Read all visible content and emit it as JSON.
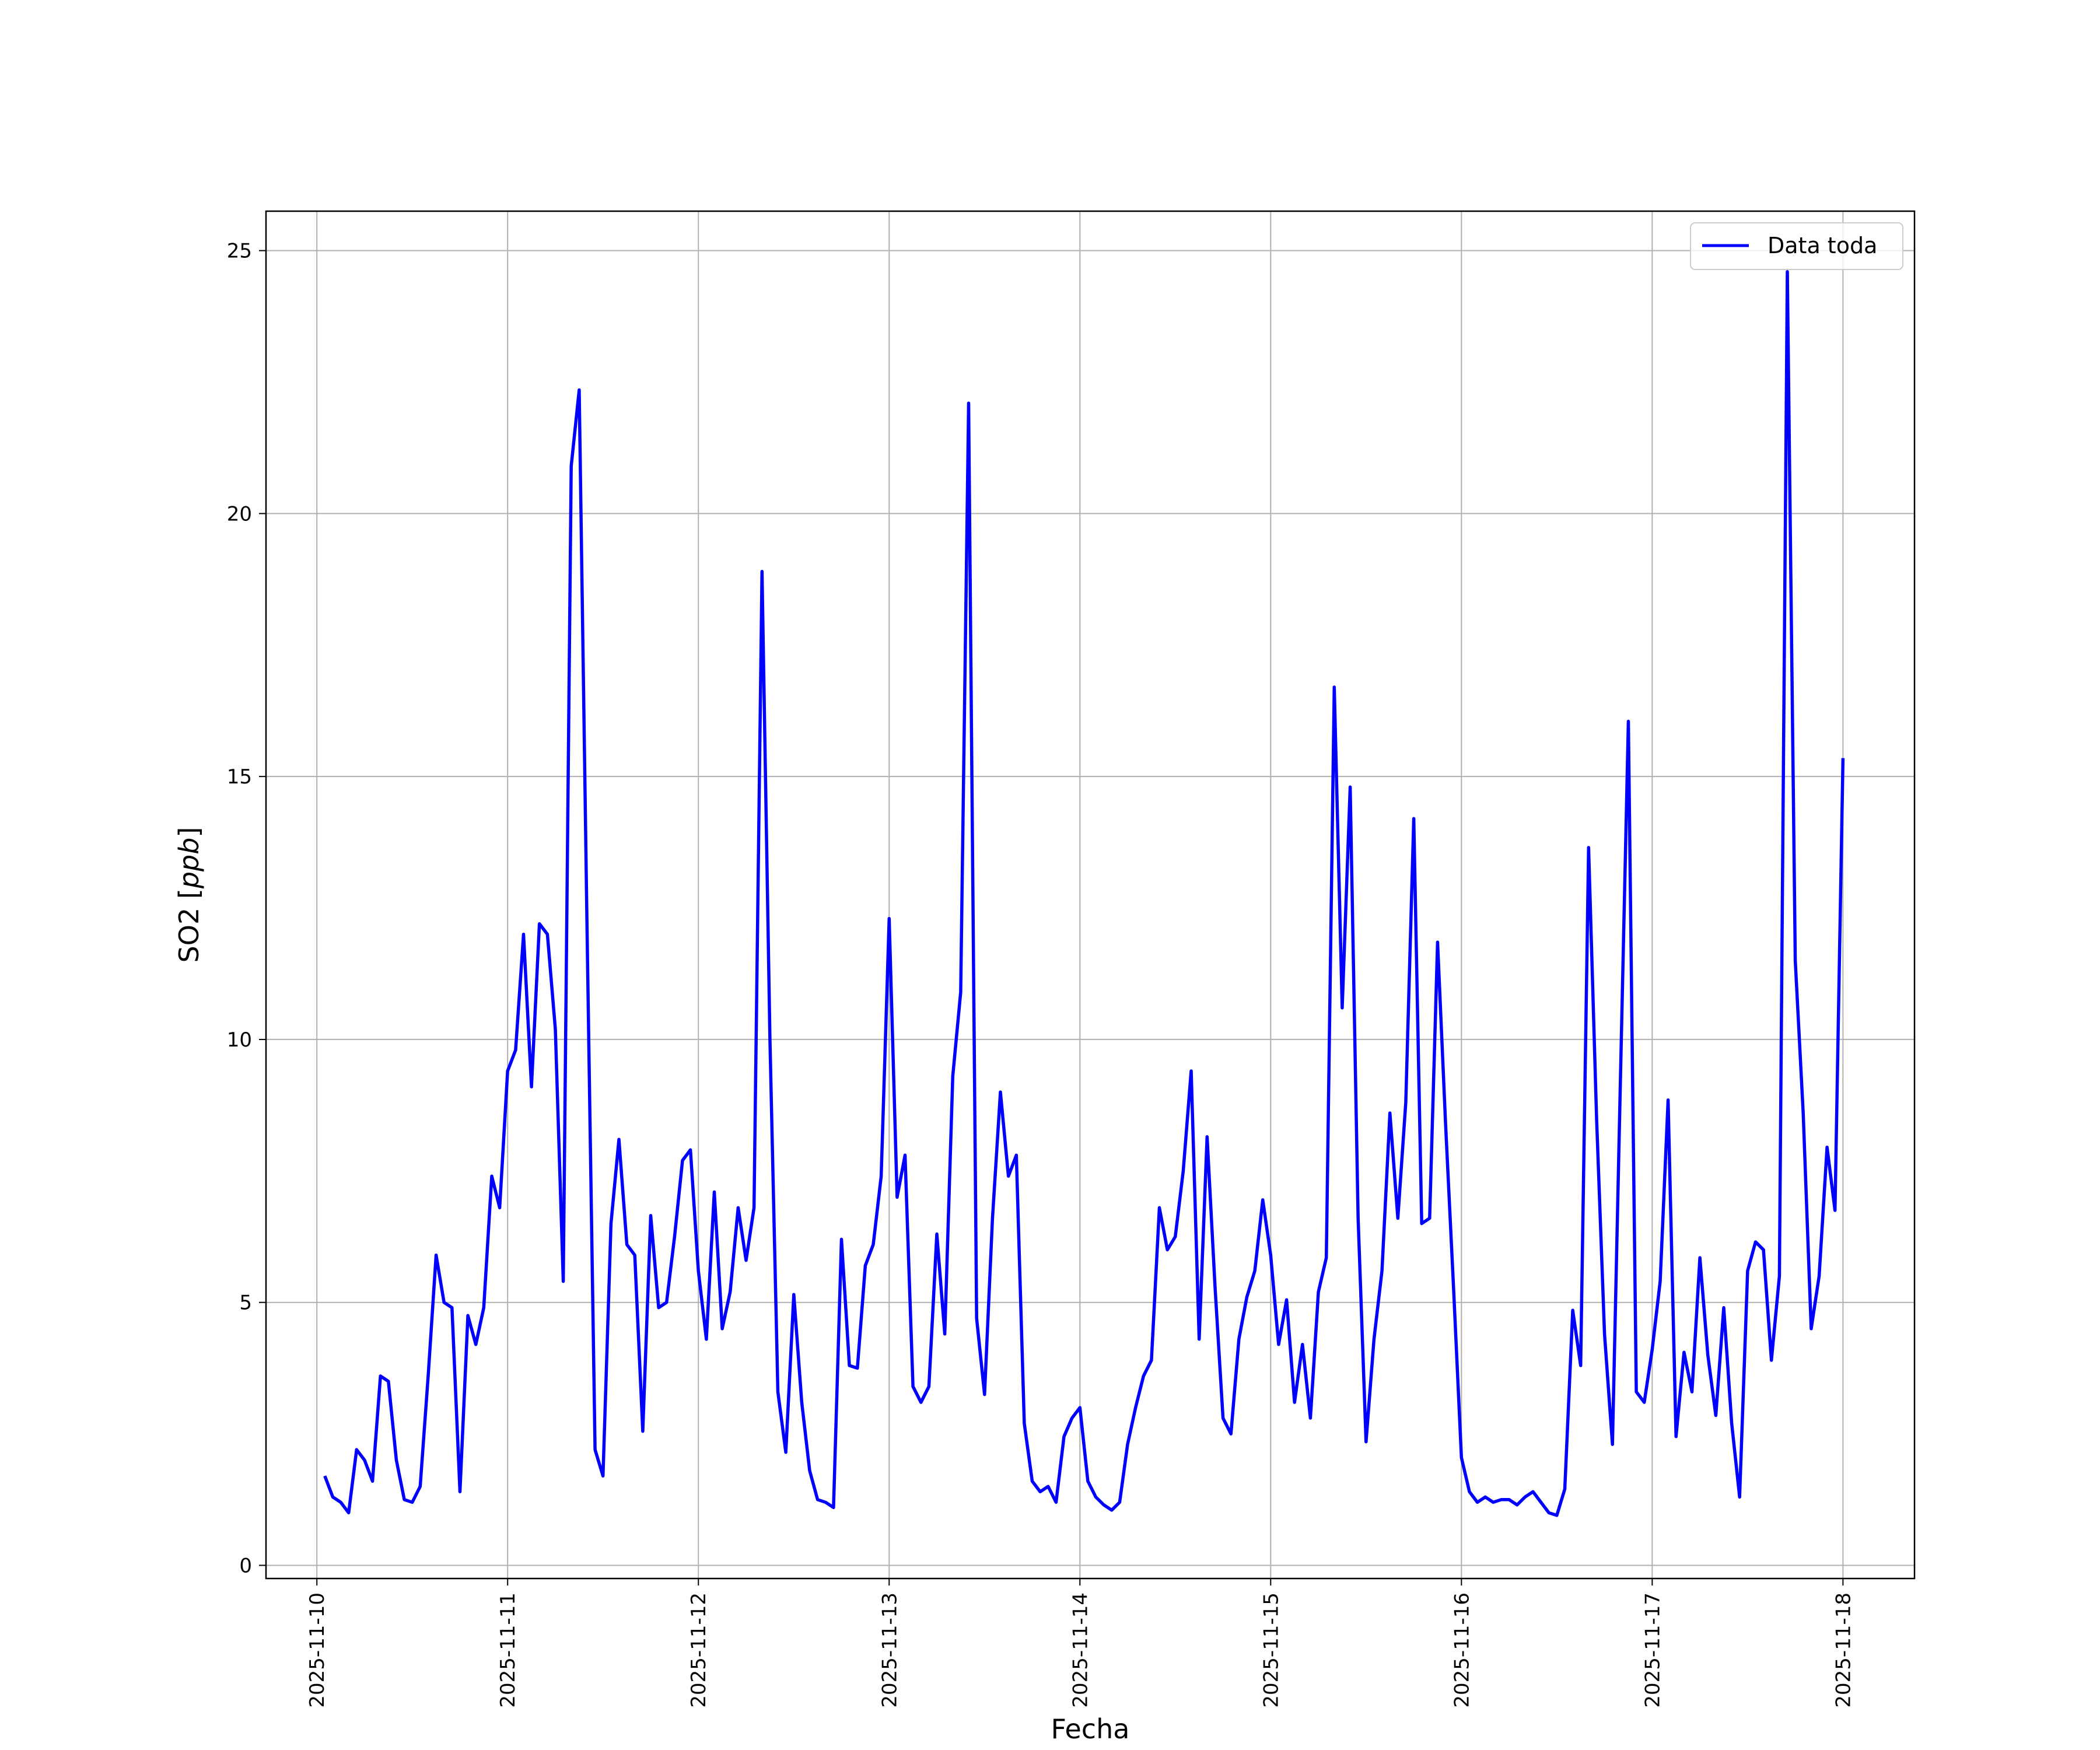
{
  "chart_data": {
    "type": "line",
    "xlabel": "Fecha",
    "ylabel": "SO2 [ppb]",
    "ylabel_prefix": "SO2 [",
    "ylabel_unit": "ppb",
    "ylabel_suffix": "]",
    "xlim": [
      "2025-11-09T17:36",
      "2025-11-18T09:00"
    ],
    "ylim": [
      -0.25,
      25.75
    ],
    "grid": true,
    "legend_position": "upper right",
    "x_ticks": [
      "2025-11-10",
      "2025-11-11",
      "2025-11-12",
      "2025-11-13",
      "2025-11-14",
      "2025-11-15",
      "2025-11-16",
      "2025-11-17",
      "2025-11-18"
    ],
    "y_ticks": [
      0,
      5,
      10,
      15,
      20,
      25
    ],
    "series": [
      {
        "name": "Data toda",
        "color": "#0000ff",
        "x_start": "2025-11-10T01:00",
        "x_step_hours": 1,
        "values": [
          1.7,
          1.3,
          1.2,
          1.0,
          2.2,
          2.0,
          1.6,
          3.6,
          3.5,
          2.0,
          1.25,
          1.2,
          1.5,
          3.6,
          5.9,
          5.0,
          4.9,
          1.4,
          4.75,
          4.2,
          4.9,
          7.4,
          6.8,
          9.4,
          9.8,
          12.0,
          9.1,
          12.2,
          12.0,
          10.2,
          5.4,
          20.9,
          22.35,
          12.0,
          2.2,
          1.7,
          6.5,
          8.1,
          6.1,
          5.9,
          2.55,
          6.65,
          4.9,
          5.0,
          6.25,
          7.7,
          7.9,
          5.6,
          4.3,
          7.1,
          4.5,
          5.2,
          6.8,
          5.8,
          6.8,
          18.9,
          10.0,
          3.3,
          2.15,
          5.15,
          3.1,
          1.8,
          1.25,
          1.2,
          1.1,
          6.2,
          3.8,
          3.75,
          5.7,
          6.1,
          7.4,
          12.3,
          7.0,
          7.8,
          3.4,
          3.1,
          3.4,
          6.3,
          4.4,
          9.3,
          10.9,
          22.1,
          4.7,
          3.25,
          6.6,
          9.0,
          7.4,
          7.8,
          2.7,
          1.6,
          1.4,
          1.5,
          1.2,
          2.45,
          2.8,
          3.0,
          1.6,
          1.3,
          1.15,
          1.05,
          1.2,
          2.3,
          3.0,
          3.6,
          3.9,
          6.8,
          6.0,
          6.25,
          7.5,
          9.4,
          4.3,
          8.15,
          5.3,
          2.8,
          2.5,
          4.3,
          5.1,
          5.6,
          6.95,
          5.9,
          4.2,
          5.05,
          3.1,
          4.2,
          2.8,
          5.2,
          5.85,
          16.7,
          10.6,
          14.8,
          6.6,
          2.35,
          4.3,
          5.6,
          8.6,
          6.6,
          8.8,
          14.2,
          6.5,
          6.6,
          11.85,
          8.4,
          5.3,
          2.05,
          1.4,
          1.2,
          1.3,
          1.2,
          1.25,
          1.25,
          1.15,
          1.3,
          1.4,
          1.2,
          1.0,
          0.95,
          1.45,
          4.85,
          3.8,
          13.65,
          8.5,
          4.4,
          2.3,
          9.2,
          16.05,
          3.3,
          3.1,
          4.1,
          5.4,
          8.85,
          2.45,
          4.05,
          3.3,
          5.85,
          4.0,
          2.85,
          4.9,
          2.7,
          1.3,
          5.6,
          6.15,
          6.0,
          3.9,
          5.5,
          24.6,
          11.5,
          8.6,
          4.5,
          5.5,
          7.95,
          6.75,
          15.35
        ]
      }
    ]
  }
}
